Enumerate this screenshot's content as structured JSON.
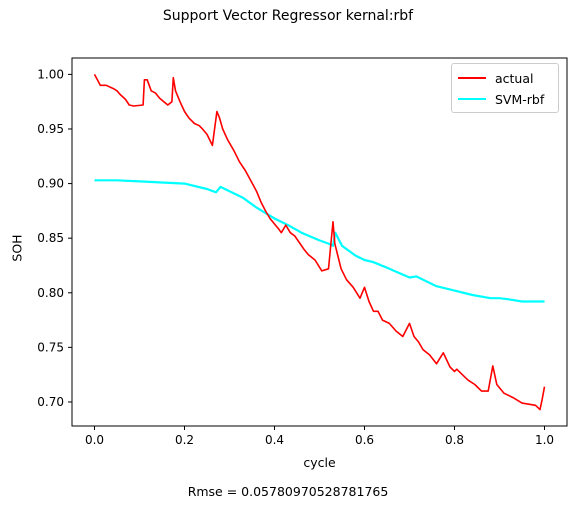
{
  "figure": {
    "title": "Support Vector Regressor kernal:rbf",
    "caption": "Rmse = 0.05780970528781765"
  },
  "chart_data": {
    "type": "line",
    "title": "Support Vector Regressor kernal:rbf",
    "xlabel": "cycle",
    "ylabel": "SOH",
    "xlim": [
      -0.05,
      1.05
    ],
    "ylim": [
      0.678,
      1.015
    ],
    "xticks": [
      "0.0",
      "0.2",
      "0.4",
      "0.6",
      "0.8",
      "1.0"
    ],
    "yticks": [
      "0.70",
      "0.75",
      "0.80",
      "0.85",
      "0.90",
      "0.95",
      "1.00"
    ],
    "grid": false,
    "legend_position": "top-right",
    "series": [
      {
        "name": "actual",
        "color": "#ff0000",
        "x": [
          0.0,
          0.013,
          0.026,
          0.042,
          0.05,
          0.056,
          0.069,
          0.077,
          0.087,
          0.108,
          0.111,
          0.117,
          0.126,
          0.135,
          0.145,
          0.163,
          0.172,
          0.175,
          0.18,
          0.19,
          0.2,
          0.21,
          0.222,
          0.233,
          0.24,
          0.25,
          0.262,
          0.272,
          0.278,
          0.285,
          0.296,
          0.31,
          0.322,
          0.335,
          0.347,
          0.36,
          0.37,
          0.38,
          0.39,
          0.4,
          0.41,
          0.415,
          0.425,
          0.435,
          0.445,
          0.455,
          0.465,
          0.475,
          0.49,
          0.505,
          0.52,
          0.53,
          0.534,
          0.548,
          0.56,
          0.575,
          0.59,
          0.6,
          0.61,
          0.62,
          0.63,
          0.64,
          0.655,
          0.67,
          0.685,
          0.7,
          0.71,
          0.72,
          0.73,
          0.745,
          0.76,
          0.775,
          0.79,
          0.8,
          0.805,
          0.815,
          0.83,
          0.845,
          0.86,
          0.875,
          0.885,
          0.894,
          0.91,
          0.93,
          0.95,
          0.965,
          0.98,
          0.99,
          0.995,
          1.0
        ],
        "y": [
          1.0,
          0.99,
          0.99,
          0.987,
          0.985,
          0.982,
          0.977,
          0.972,
          0.971,
          0.972,
          0.995,
          0.995,
          0.985,
          0.983,
          0.978,
          0.972,
          0.975,
          0.997,
          0.985,
          0.975,
          0.966,
          0.96,
          0.955,
          0.953,
          0.95,
          0.945,
          0.935,
          0.966,
          0.96,
          0.95,
          0.94,
          0.93,
          0.92,
          0.912,
          0.903,
          0.893,
          0.883,
          0.875,
          0.868,
          0.863,
          0.858,
          0.855,
          0.862,
          0.855,
          0.852,
          0.846,
          0.84,
          0.835,
          0.83,
          0.82,
          0.822,
          0.865,
          0.845,
          0.822,
          0.812,
          0.805,
          0.795,
          0.805,
          0.792,
          0.783,
          0.783,
          0.775,
          0.772,
          0.765,
          0.76,
          0.772,
          0.76,
          0.755,
          0.748,
          0.743,
          0.735,
          0.745,
          0.732,
          0.728,
          0.73,
          0.726,
          0.72,
          0.716,
          0.71,
          0.71,
          0.733,
          0.716,
          0.708,
          0.704,
          0.699,
          0.698,
          0.697,
          0.693,
          0.703,
          0.714
        ]
      },
      {
        "name": "SVM-rbf",
        "color": "#00ffff",
        "x": [
          0.0,
          0.05,
          0.1,
          0.15,
          0.2,
          0.25,
          0.27,
          0.28,
          0.3,
          0.33,
          0.36,
          0.4,
          0.43,
          0.46,
          0.5,
          0.52,
          0.53,
          0.535,
          0.55,
          0.58,
          0.6,
          0.62,
          0.65,
          0.7,
          0.715,
          0.73,
          0.76,
          0.8,
          0.84,
          0.88,
          0.9,
          0.92,
          0.95,
          0.98,
          1.0
        ],
        "y": [
          0.903,
          0.903,
          0.902,
          0.901,
          0.9,
          0.895,
          0.892,
          0.897,
          0.893,
          0.887,
          0.878,
          0.868,
          0.862,
          0.855,
          0.848,
          0.845,
          0.843,
          0.855,
          0.843,
          0.834,
          0.83,
          0.828,
          0.823,
          0.814,
          0.815,
          0.812,
          0.806,
          0.802,
          0.798,
          0.795,
          0.795,
          0.794,
          0.792,
          0.792,
          0.792
        ]
      }
    ]
  }
}
